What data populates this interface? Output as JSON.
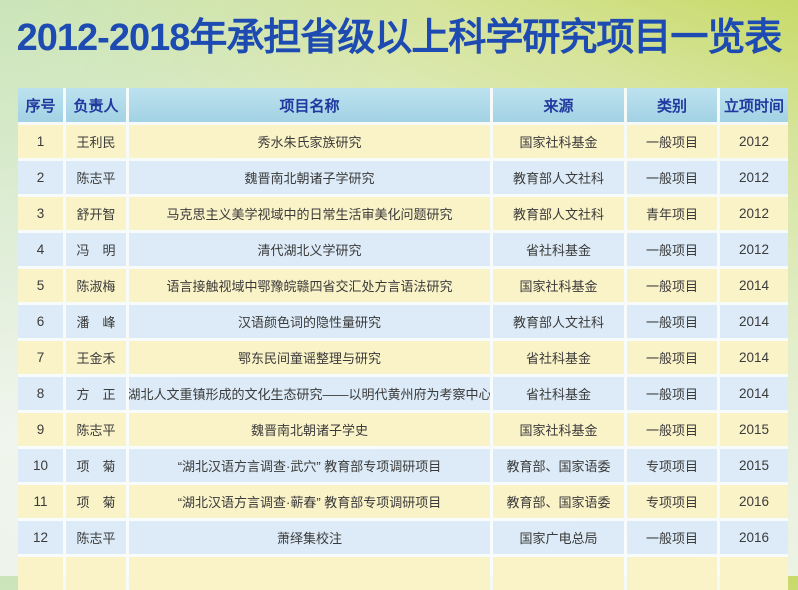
{
  "page": {
    "title": "2012-2018年承担省级以上科学研究项目一览表"
  },
  "colors": {
    "title_text": "#1d4bb2",
    "header_bg": "#a9d7e8",
    "header_text": "#21399e",
    "row_yellow": "#faf3c8",
    "row_blue": "#dcebf7",
    "cell_text": "#3a3a3a"
  },
  "table": {
    "columns": [
      {
        "key": "index",
        "label": "序号"
      },
      {
        "key": "leader",
        "label": "负责人"
      },
      {
        "key": "name",
        "label": "项目名称"
      },
      {
        "key": "source",
        "label": "来源"
      },
      {
        "key": "category",
        "label": "类别"
      },
      {
        "key": "year",
        "label": "立项时间"
      }
    ],
    "rows": [
      {
        "index": "1",
        "leader": "王利民",
        "name": "秀水朱氏家族研究",
        "source": "国家社科基金",
        "category": "一般项目",
        "year": "2012"
      },
      {
        "index": "2",
        "leader": "陈志平",
        "name": "魏晋南北朝诸子学研究",
        "source": "教育部人文社科",
        "category": "一般项目",
        "year": "2012"
      },
      {
        "index": "3",
        "leader": "舒开智",
        "name": "马克思主义美学视域中的日常生活审美化问题研究",
        "source": "教育部人文社科",
        "category": "青年项目",
        "year": "2012"
      },
      {
        "index": "4",
        "leader": "冯　明",
        "name": "清代湖北义学研究",
        "source": "省社科基金",
        "category": "一般项目",
        "year": "2012"
      },
      {
        "index": "5",
        "leader": "陈淑梅",
        "name": "语言接触视域中鄂豫皖赣四省交汇处方言语法研究",
        "source": "国家社科基金",
        "category": "一般项目",
        "year": "2014"
      },
      {
        "index": "6",
        "leader": "潘　峰",
        "name": "汉语颜色词的隐性量研究",
        "source": "教育部人文社科",
        "category": "一般项目",
        "year": "2014"
      },
      {
        "index": "7",
        "leader": "王金禾",
        "name": "鄂东民间童谣整理与研究",
        "source": "省社科基金",
        "category": "一般项目",
        "year": "2014"
      },
      {
        "index": "8",
        "leader": "方　正",
        "name": "湖北人文重镇形成的文化生态研究——以明代黄州府为考察中心",
        "source": "省社科基金",
        "category": "一般项目",
        "year": "2014"
      },
      {
        "index": "9",
        "leader": "陈志平",
        "name": "魏晋南北朝诸子学史",
        "source": "国家社科基金",
        "category": "一般项目",
        "year": "2015"
      },
      {
        "index": "10",
        "leader": "项　菊",
        "name": "“湖北汉语方言调查·武穴” 教育部专项调研项目",
        "source": "教育部、国家语委",
        "category": "专项项目",
        "year": "2015"
      },
      {
        "index": "11",
        "leader": "项　菊",
        "name": "“湖北汉语方言调查·蕲春” 教育部专项调研项目",
        "source": "教育部、国家语委",
        "category": "专项项目",
        "year": "2016"
      },
      {
        "index": "12",
        "leader": "陈志平",
        "name": "萧绎集校注",
        "source": "国家广电总局",
        "category": "一般项目",
        "year": "2016"
      }
    ]
  }
}
